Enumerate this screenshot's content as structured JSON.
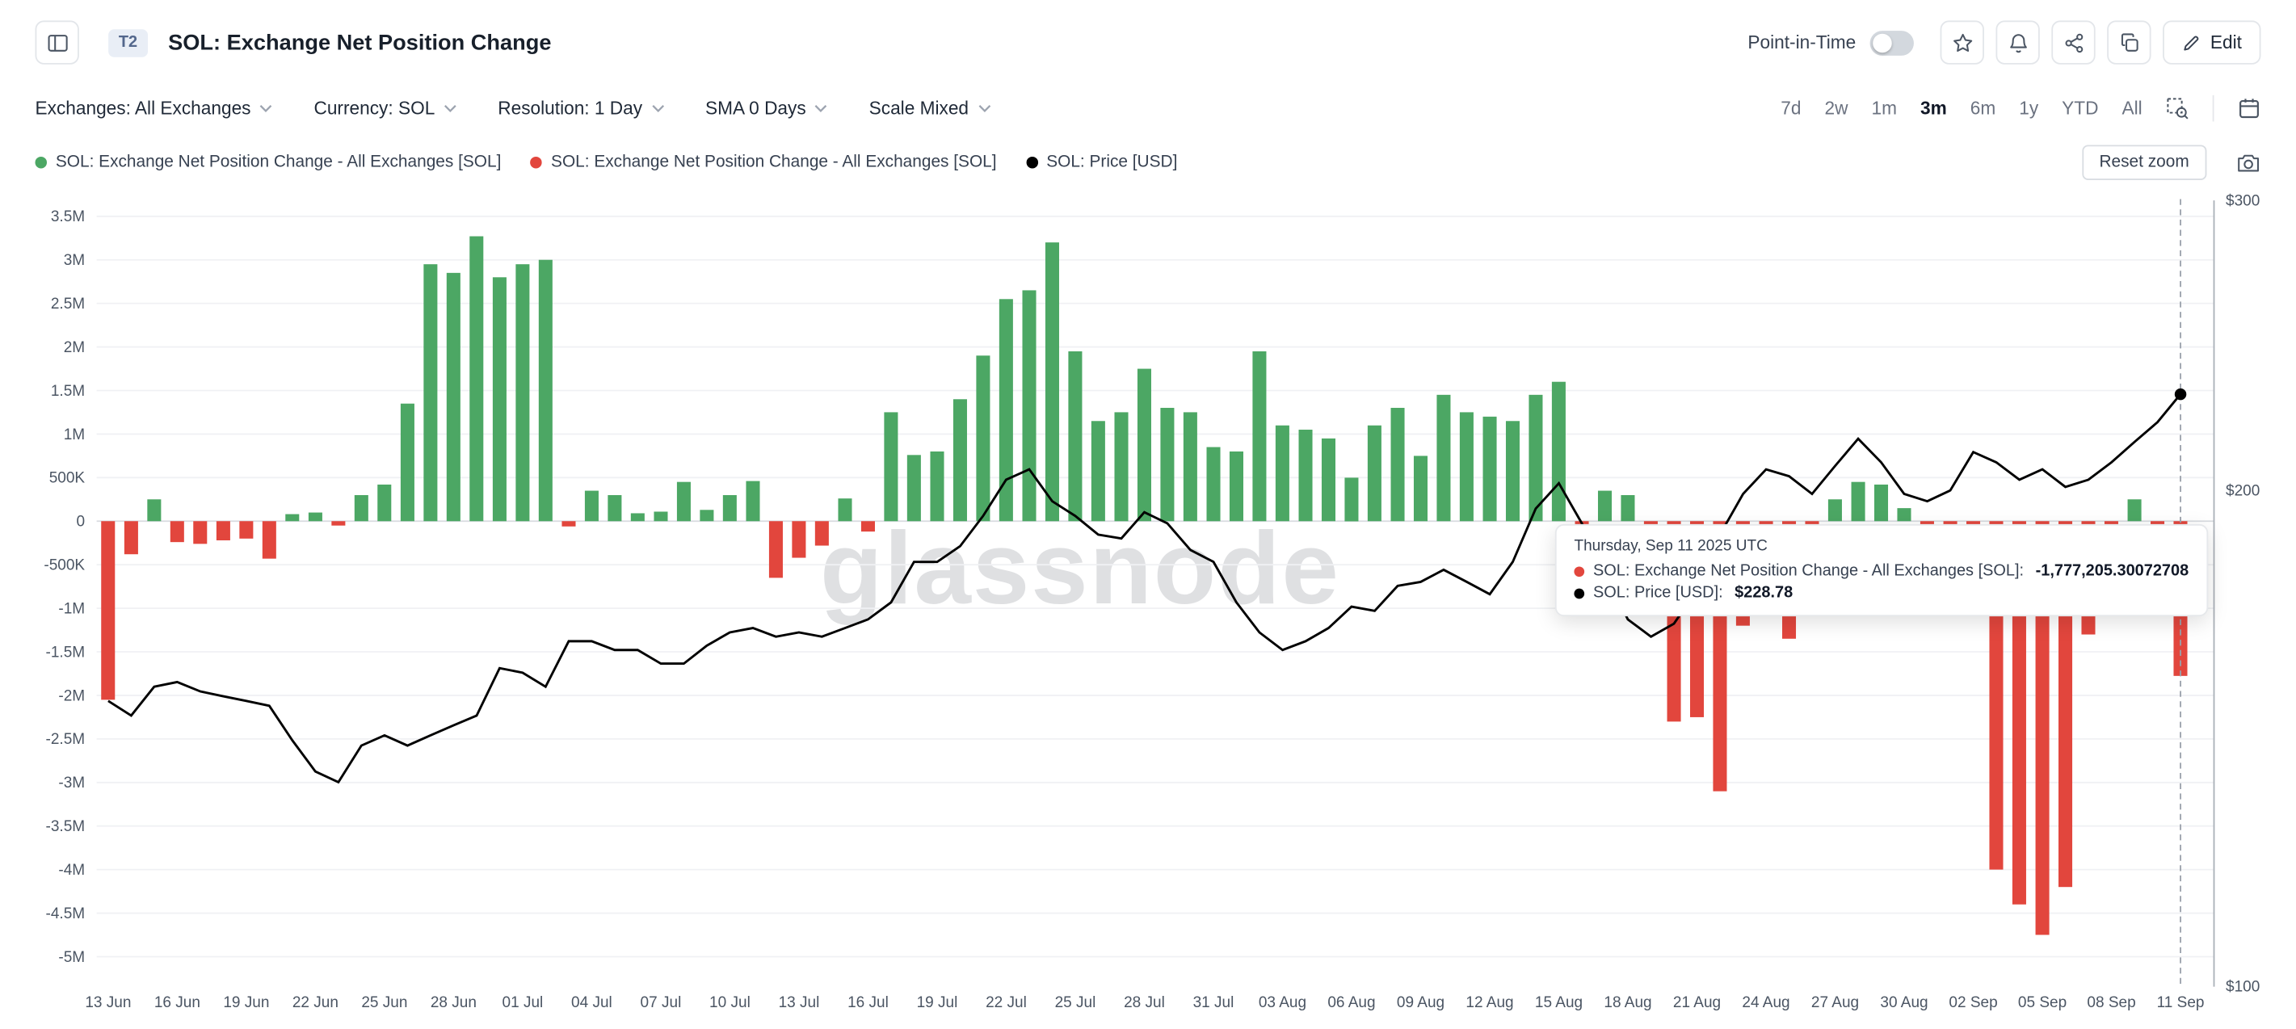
{
  "header": {
    "badge": "T2",
    "title": "SOL: Exchange Net Position Change",
    "point_in_time_label": "Point-in-Time",
    "edit_label": "Edit"
  },
  "toolbar": {
    "filters": [
      {
        "label": "Exchanges: All Exchanges"
      },
      {
        "label": "Currency: SOL"
      },
      {
        "label": "Resolution: 1 Day"
      },
      {
        "label": "SMA 0 Days"
      },
      {
        "label": "Scale Mixed"
      }
    ],
    "ranges": [
      "7d",
      "2w",
      "1m",
      "3m",
      "6m",
      "1y",
      "YTD",
      "All"
    ],
    "active_range": "3m"
  },
  "legend": {
    "items": [
      {
        "label": "SOL: Exchange Net Position Change - All Exchanges [SOL]",
        "color": "#4CA764"
      },
      {
        "label": "SOL: Exchange Net Position Change - All Exchanges [SOL]",
        "color": "#E2463D"
      },
      {
        "label": "SOL: Price [USD]",
        "color": "#000000"
      }
    ],
    "reset_zoom_label": "Reset zoom"
  },
  "watermark": "glassnode",
  "tooltip": {
    "date": "Thursday, Sep 11 2025 UTC",
    "rows": [
      {
        "color": "#E2463D",
        "label": "SOL: Exchange Net Position Change - All Exchanges [SOL]:",
        "value": "-1,777,205.30072708"
      },
      {
        "color": "#000000",
        "label": "SOL: Price [USD]:",
        "value": "$228.78"
      }
    ]
  },
  "chart_data": {
    "type": "bar+line",
    "title": "SOL: Exchange Net Position Change",
    "x_tick_every": 3,
    "hover_index": 90,
    "x": [
      "13 Jun",
      "14 Jun",
      "15 Jun",
      "16 Jun",
      "17 Jun",
      "18 Jun",
      "19 Jun",
      "20 Jun",
      "21 Jun",
      "22 Jun",
      "23 Jun",
      "24 Jun",
      "25 Jun",
      "26 Jun",
      "27 Jun",
      "28 Jun",
      "29 Jun",
      "30 Jun",
      "01 Jul",
      "02 Jul",
      "03 Jul",
      "04 Jul",
      "05 Jul",
      "06 Jul",
      "07 Jul",
      "08 Jul",
      "09 Jul",
      "10 Jul",
      "11 Jul",
      "12 Jul",
      "13 Jul",
      "14 Jul",
      "15 Jul",
      "16 Jul",
      "17 Jul",
      "18 Jul",
      "19 Jul",
      "20 Jul",
      "21 Jul",
      "22 Jul",
      "23 Jul",
      "24 Jul",
      "25 Jul",
      "26 Jul",
      "27 Jul",
      "28 Jul",
      "29 Jul",
      "30 Jul",
      "31 Jul",
      "01 Aug",
      "02 Aug",
      "03 Aug",
      "04 Aug",
      "05 Aug",
      "06 Aug",
      "07 Aug",
      "08 Aug",
      "09 Aug",
      "10 Aug",
      "11 Aug",
      "12 Aug",
      "13 Aug",
      "14 Aug",
      "15 Aug",
      "16 Aug",
      "17 Aug",
      "18 Aug",
      "19 Aug",
      "20 Aug",
      "21 Aug",
      "22 Aug",
      "23 Aug",
      "24 Aug",
      "25 Aug",
      "26 Aug",
      "27 Aug",
      "28 Aug",
      "29 Aug",
      "30 Aug",
      "31 Aug",
      "01 Sep",
      "02 Sep",
      "03 Sep",
      "04 Sep",
      "05 Sep",
      "06 Sep",
      "07 Sep",
      "08 Sep",
      "09 Sep",
      "10 Sep",
      "11 Sep"
    ],
    "series": [
      {
        "name": "SOL: Exchange Net Position Change - All Exchanges [SOL]",
        "type": "bar",
        "axis": "left",
        "unit": "SOL",
        "positive_color": "#4CA764",
        "negative_color": "#E2463D",
        "values": [
          -2050000,
          -380000,
          250000,
          -240000,
          -260000,
          -220000,
          -200000,
          -430000,
          80000,
          100000,
          -50000,
          300000,
          420000,
          1350000,
          2950000,
          2850000,
          3270000,
          2800000,
          2950000,
          3000000,
          -60000,
          350000,
          300000,
          90000,
          110000,
          450000,
          130000,
          300000,
          460000,
          -650000,
          -420000,
          -280000,
          260000,
          -120000,
          1250000,
          760000,
          800000,
          1400000,
          1900000,
          2550000,
          2650000,
          3200000,
          1950000,
          1150000,
          1250000,
          1750000,
          1300000,
          1250000,
          850000,
          800000,
          1950000,
          1100000,
          1050000,
          950000,
          500000,
          1100000,
          1300000,
          750000,
          1450000,
          1250000,
          1200000,
          1150000,
          1450000,
          1600000,
          -300000,
          350000,
          300000,
          -200000,
          -2300000,
          -2250000,
          -3100000,
          -1200000,
          -600000,
          -1350000,
          -300000,
          250000,
          450000,
          420000,
          150000,
          -100000,
          -150000,
          -200000,
          -4000000,
          -4400000,
          -4750000,
          -4200000,
          -1300000,
          -200000,
          250000,
          -100000,
          -1777205.30072708
        ]
      },
      {
        "name": "SOL: Price [USD]",
        "type": "line",
        "axis": "right",
        "unit": "USD",
        "color": "#000000",
        "values": [
          149,
          146,
          152,
          153,
          151,
          150,
          149,
          148,
          141,
          135,
          133,
          140,
          142,
          140,
          142,
          144,
          146,
          156,
          155,
          152,
          162,
          162,
          160,
          160,
          157,
          157,
          161,
          164,
          165,
          163,
          164,
          163,
          165,
          167,
          171,
          181,
          181,
          185,
          193,
          203,
          206,
          197,
          193,
          188,
          187,
          194,
          191,
          184,
          181,
          171,
          164,
          160,
          162,
          165,
          170,
          169,
          175,
          176,
          179,
          176,
          173,
          181,
          195,
          202,
          191,
          178,
          167,
          163,
          166,
          174,
          188,
          199,
          206,
          204,
          199,
          207,
          215,
          208,
          199,
          197,
          200,
          211,
          208,
          203,
          206,
          201,
          203,
          208,
          214,
          220,
          228.78
        ]
      }
    ],
    "left_axis": {
      "min": -5000000,
      "max": 3500000,
      "grid": true,
      "ticks": [
        {
          "label": "3.5M",
          "value": 3500000
        },
        {
          "label": "3M",
          "value": 3000000
        },
        {
          "label": "2.5M",
          "value": 2500000
        },
        {
          "label": "2M",
          "value": 2000000
        },
        {
          "label": "1.5M",
          "value": 1500000
        },
        {
          "label": "1M",
          "value": 1000000
        },
        {
          "label": "500K",
          "value": 500000
        },
        {
          "label": "0",
          "value": 0
        },
        {
          "label": "-500K",
          "value": -500000
        },
        {
          "label": "-1M",
          "value": -1000000
        },
        {
          "label": "-1.5M",
          "value": -1500000
        },
        {
          "label": "-2M",
          "value": -2000000
        },
        {
          "label": "-2.5M",
          "value": -2500000
        },
        {
          "label": "-3M",
          "value": -3000000
        },
        {
          "label": "-3.5M",
          "value": -3500000
        },
        {
          "label": "-4M",
          "value": -4000000
        },
        {
          "label": "-4.5M",
          "value": -4500000
        },
        {
          "label": "-5M",
          "value": -5000000
        }
      ]
    },
    "right_axis": {
      "scale": "log",
      "min": 100,
      "max": 300,
      "ticks": [
        {
          "label": "$300",
          "value": 300
        },
        {
          "label": "$200",
          "value": 200
        },
        {
          "label": "$100",
          "value": 100
        }
      ]
    }
  }
}
